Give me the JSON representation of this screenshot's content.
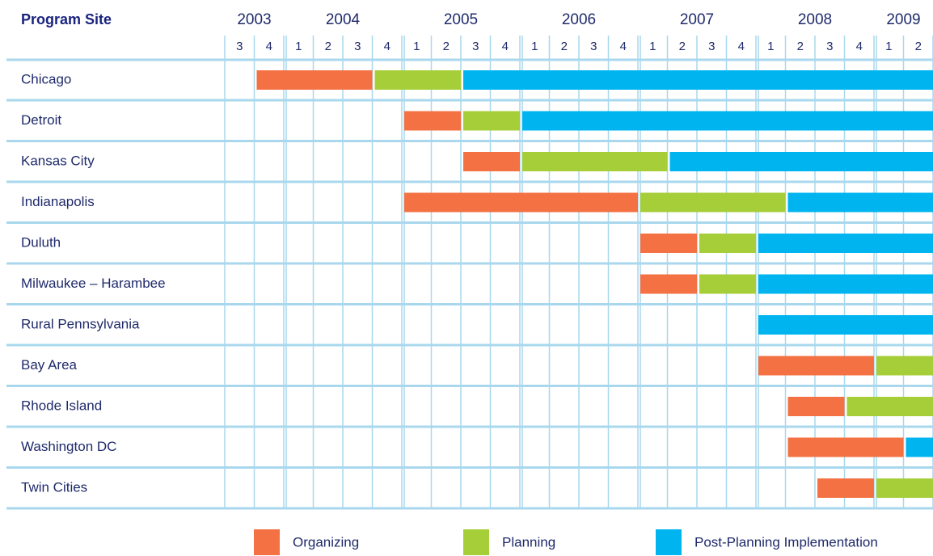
{
  "chart_data": {
    "type": "gantt",
    "label_header": "Program Site",
    "years": [
      2003,
      2004,
      2005,
      2006,
      2007,
      2008,
      2009
    ],
    "quarters": [
      3,
      4,
      1,
      2,
      3,
      4,
      1,
      2,
      3,
      4,
      1,
      2,
      3,
      4,
      1,
      2,
      3,
      4,
      1,
      2,
      3,
      4,
      1,
      2
    ],
    "xlim": [
      2003.5,
      2009.5
    ],
    "categories": [
      "Chicago",
      "Detroit",
      "Kansas City",
      "Indianapolis",
      "Duluth",
      "Milwaukee – Harambee",
      "Rural Pennsylvania",
      "Bay Area",
      "Rhode Island",
      "Washington DC",
      "Twin Cities"
    ],
    "series": [
      {
        "name": "Organizing",
        "color": "#f37143",
        "start": [
          2003.75,
          2005.0,
          2005.5,
          2005.0,
          2007.0,
          2007.0,
          null,
          2008.0,
          2008.25,
          2008.25,
          2008.5
        ],
        "end": [
          2004.75,
          2005.5,
          2006.0,
          2007.0,
          2007.5,
          2007.5,
          null,
          2009.0,
          2008.75,
          2009.25,
          2009.0
        ]
      },
      {
        "name": "Planning",
        "color": "#a6ce39",
        "start": [
          2004.75,
          2005.5,
          2006.0,
          2007.0,
          2007.5,
          2007.5,
          null,
          2009.0,
          2008.75,
          null,
          2009.0
        ],
        "end": [
          2005.5,
          2006.0,
          2007.25,
          2008.25,
          2008.0,
          2008.0,
          null,
          2009.5,
          2009.5,
          null,
          2009.5
        ]
      },
      {
        "name": "Post-Planning Implementation",
        "color": "#00b5ef",
        "start": [
          2005.5,
          2006.0,
          2007.25,
          2008.25,
          2008.0,
          2008.0,
          2008.0,
          null,
          null,
          2009.25,
          null
        ],
        "end": [
          2009.5,
          2009.5,
          2009.5,
          2009.5,
          2009.5,
          2009.5,
          2009.5,
          null,
          null,
          2009.5,
          null
        ]
      }
    ]
  }
}
